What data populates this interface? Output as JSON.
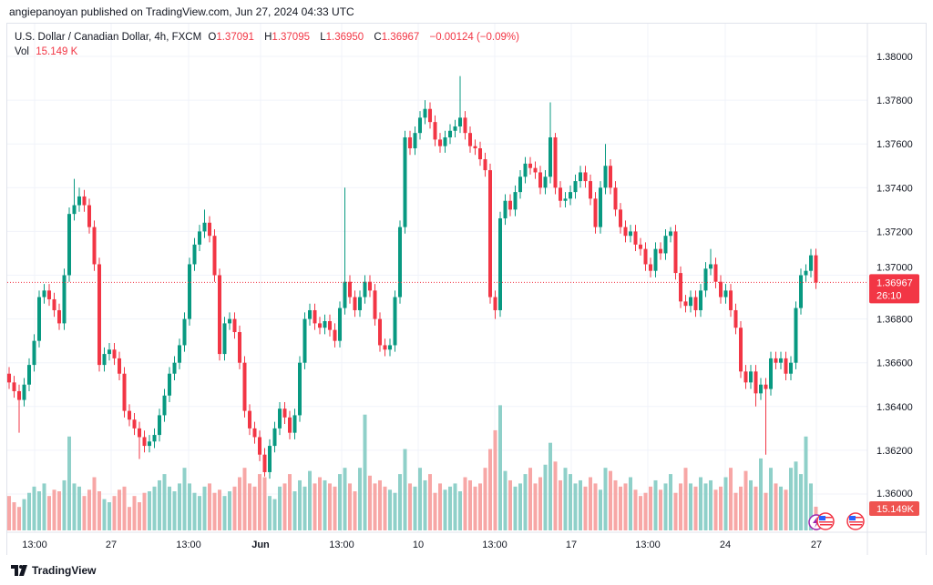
{
  "published": "angiepanoyan published on TradingView.com, Jun 27, 2024 04:33 UTC",
  "legend": {
    "symbol": "U.S. Dollar / Canadian Dollar, 4h, FXCM",
    "o_label": "O",
    "o": "1.37091",
    "h_label": "H",
    "h": "1.37095",
    "l_label": "L",
    "l": "1.36950",
    "c_label": "C",
    "c": "1.36967",
    "change": "−0.00124 (−0.09%)",
    "vol_label": "Vol",
    "vol": "15.149 K"
  },
  "price_axis": [
    "1.38000",
    "1.37800",
    "1.37600",
    "1.37400",
    "1.37200",
    "1.37000",
    "1.36800",
    "1.36600",
    "1.36400",
    "1.36200",
    "1.36000"
  ],
  "last_price": {
    "price": "1.36967",
    "countdown": "26:10",
    "value": 1.36967
  },
  "volume_badge": "15.149K",
  "time_axis": [
    "13:00",
    "27",
    "13:00",
    "Jun",
    "13:00",
    "10",
    "13:00",
    "17",
    "13:00",
    "24",
    "27"
  ],
  "footer": {
    "brand": "TradingView"
  },
  "colors": {
    "up": "#089981",
    "down": "#f23645",
    "vol_up": "#8fd0c9",
    "vol_down": "#f7a7a6",
    "grid": "#f0f3fa"
  },
  "chart_data": {
    "type": "candlestick",
    "symbol": "USDCAD",
    "interval": "4h",
    "ylim": [
      1.3595,
      1.3815
    ],
    "first_open": 1.3655,
    "closes": [
      1.3651,
      1.3647,
      1.3643,
      1.365,
      1.3659,
      1.367,
      1.369,
      1.3693,
      1.3689,
      1.3684,
      1.3678,
      1.37,
      1.3728,
      1.3732,
      1.3736,
      1.3732,
      1.3722,
      1.3705,
      1.3659,
      1.3664,
      1.3666,
      1.3662,
      1.3655,
      1.3638,
      1.3634,
      1.363,
      1.3626,
      1.3622,
      1.3624,
      1.3627,
      1.3636,
      1.3645,
      1.3655,
      1.366,
      1.3668,
      1.368,
      1.3705,
      1.3714,
      1.372,
      1.3724,
      1.3718,
      1.37,
      1.3664,
      1.3678,
      1.368,
      1.3674,
      1.366,
      1.3638,
      1.363,
      1.3626,
      1.3618,
      1.361,
      1.3622,
      1.363,
      1.3639,
      1.3635,
      1.3628,
      1.3636,
      1.366,
      1.368,
      1.3684,
      1.3678,
      1.3676,
      1.3679,
      1.3675,
      1.367,
      1.3685,
      1.3697,
      1.369,
      1.3684,
      1.369,
      1.3697,
      1.3693,
      1.368,
      1.3668,
      1.3666,
      1.3668,
      1.369,
      1.3722,
      1.3763,
      1.3758,
      1.3765,
      1.3772,
      1.3776,
      1.377,
      1.3762,
      1.3759,
      1.3763,
      1.3766,
      1.3768,
      1.3772,
      1.3765,
      1.3759,
      1.3758,
      1.3753,
      1.3748,
      1.369,
      1.3684,
      1.3726,
      1.3734,
      1.373,
      1.3738,
      1.3745,
      1.3751,
      1.3749,
      1.3747,
      1.374,
      1.3745,
      1.3763,
      1.374,
      1.3734,
      1.3735,
      1.3738,
      1.3743,
      1.3747,
      1.3743,
      1.3735,
      1.3722,
      1.374,
      1.375,
      1.374,
      1.373,
      1.3722,
      1.3718,
      1.372,
      1.3714,
      1.3712,
      1.3705,
      1.3702,
      1.3712,
      1.371,
      1.3718,
      1.372,
      1.3701,
      1.3688,
      1.3686,
      1.369,
      1.3684,
      1.3693,
      1.3703,
      1.3705,
      1.3697,
      1.369,
      1.3693,
      1.3684,
      1.3676,
      1.3656,
      1.3651,
      1.3656,
      1.3646,
      1.365,
      1.3648,
      1.3662,
      1.366,
      1.3662,
      1.3655,
      1.366,
      1.3685,
      1.37,
      1.3702,
      1.37091,
      1.36967
    ],
    "wick_default": 0.0003,
    "high_overrides": {
      "13": 1.3744,
      "14": 1.374,
      "39": 1.373,
      "67": 1.374,
      "83": 1.378,
      "90": 1.3791,
      "108": 1.3779,
      "109": 1.3765,
      "119": 1.376,
      "132": 1.3722,
      "140": 1.3712,
      "160": 1.3712
    },
    "low_overrides": {
      "2": 1.3628,
      "26": 1.3616,
      "51": 1.3608,
      "97": 1.368,
      "149": 1.364,
      "151": 1.3618,
      "152": 1.3645
    },
    "volumes_k": [
      22,
      18,
      15,
      20,
      24,
      28,
      25,
      30,
      22,
      26,
      25,
      32,
      60,
      30,
      28,
      22,
      26,
      34,
      25,
      20,
      18,
      22,
      26,
      28,
      15,
      22,
      18,
      24,
      25,
      28,
      32,
      36,
      28,
      25,
      30,
      40,
      30,
      24,
      22,
      28,
      30,
      24,
      26,
      22,
      25,
      28,
      34,
      40,
      30,
      28,
      36,
      34,
      22,
      20,
      28,
      30,
      36,
      25,
      32,
      28,
      38,
      30,
      34,
      32,
      30,
      28,
      36,
      40,
      30,
      25,
      40,
      74,
      35,
      30,
      32,
      28,
      26,
      24,
      36,
      52,
      30,
      28,
      40,
      32,
      36,
      24,
      30,
      26,
      28,
      30,
      25,
      34,
      32,
      28,
      30,
      40,
      52,
      64,
      80,
      38,
      32,
      28,
      30,
      36,
      40,
      30,
      34,
      42,
      56,
      44,
      32,
      40,
      36,
      30,
      32,
      28,
      34,
      30,
      26,
      40,
      38,
      32,
      28,
      30,
      34,
      26,
      22,
      24,
      28,
      32,
      26,
      30,
      36,
      24,
      30,
      40,
      30,
      28,
      34,
      30,
      32,
      26,
      28,
      34,
      40,
      24,
      28,
      38,
      32,
      28,
      46,
      24,
      40,
      30,
      28,
      26,
      40,
      44,
      36,
      60,
      30,
      15.149
    ],
    "xlabels": [
      "13:00",
      "27",
      "13:00",
      "Jun",
      "13:00",
      "10",
      "13:00",
      "17",
      "13:00",
      "24",
      "27"
    ]
  }
}
